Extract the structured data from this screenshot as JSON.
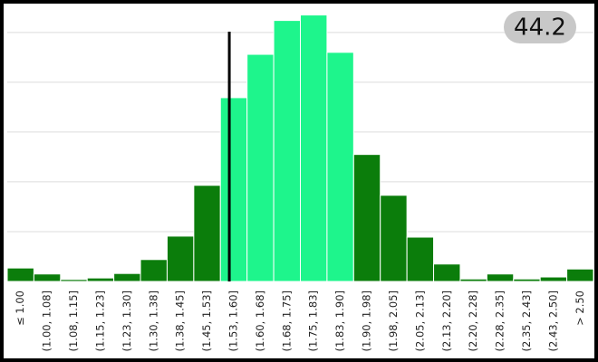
{
  "chart_data": {
    "type": "bar",
    "badge": "44.2",
    "categories": [
      "≤ 1.00",
      "(1.00, 1.08]",
      "(1.08, 1.15]",
      "(1.15, 1.23]",
      "(1.23, 1.30]",
      "(1.30, 1.38]",
      "(1.38, 1.45]",
      "(1.45, 1.53]",
      "(1.53, 1.60]",
      "(1.60, 1.68]",
      "(1.68, 1.75]",
      "(1.75, 1.83]",
      "(1.83, 1.90]",
      "(1.90, 1.98]",
      "(1.98, 2.05]",
      "(2.05, 2.13]",
      "(2.13, 2.20]",
      "(2.20, 2.28]",
      "(2.28, 2.35]",
      "(2.35, 2.43]",
      "(2.43, 2.50]",
      "> 2.50"
    ],
    "values": [
      0.27,
      0.15,
      0.04,
      0.07,
      0.16,
      0.44,
      0.91,
      1.93,
      3.69,
      4.56,
      5.24,
      5.35,
      4.6,
      2.55,
      1.73,
      0.89,
      0.35,
      0.05,
      0.15,
      0.05,
      0.09,
      0.25
    ],
    "colors": [
      "#0b7d0b",
      "#0b7d0b",
      "#0b7d0b",
      "#0b7d0b",
      "#0b7d0b",
      "#0b7d0b",
      "#0b7d0b",
      "#0b7d0b",
      "#1ef58c",
      "#1ef58c",
      "#1ef58c",
      "#1ef58c",
      "#1ef58c",
      "#0b7d0b",
      "#0b7d0b",
      "#0b7d0b",
      "#0b7d0b",
      "#0b7d0b",
      "#0b7d0b",
      "#0b7d0b",
      "#0b7d0b",
      "#0b7d0b"
    ],
    "ylim": [
      0,
      5.56
    ],
    "grid_lines": [
      1,
      2,
      3,
      4,
      5
    ],
    "grid": true,
    "bin_start": 1.0,
    "bin_width": 0.075,
    "reference_line": 1.55
  }
}
